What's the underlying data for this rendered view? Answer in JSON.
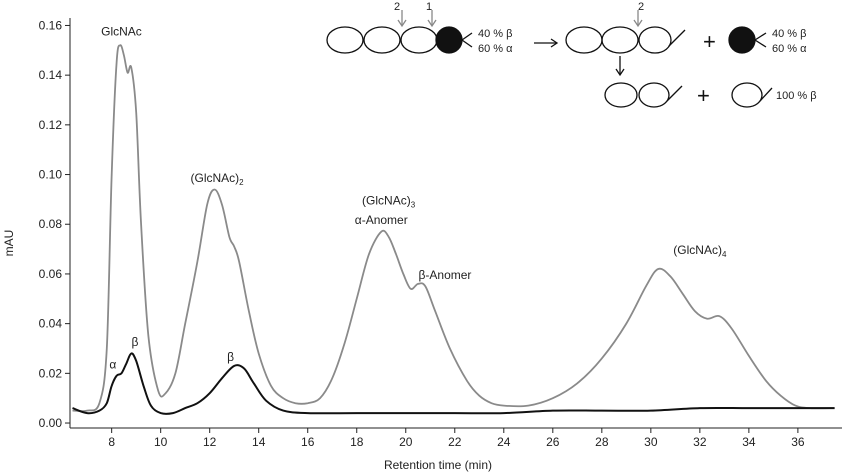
{
  "chart_data": {
    "type": "line",
    "title": "",
    "xlabel": "Retention time (min)",
    "ylabel": "mAU",
    "xlim": [
      6.3,
      37.8
    ],
    "ylim": [
      -0.002,
      0.163
    ],
    "xticks": [
      8,
      10,
      12,
      14,
      16,
      18,
      20,
      22,
      24,
      26,
      28,
      30,
      32,
      34,
      36
    ],
    "yticks": [
      0.0,
      0.02,
      0.04,
      0.06,
      0.08,
      0.1,
      0.12,
      0.14,
      0.16
    ],
    "ytick_labels": [
      "0.00",
      "0.02",
      "0.04",
      "0.06",
      "0.08",
      "0.10",
      "0.12",
      "0.14",
      "0.16"
    ],
    "grid": false,
    "series": [
      {
        "color": "#8a8a8a",
        "points": [
          [
            6.4,
            0.005
          ],
          [
            7.0,
            0.005
          ],
          [
            7.5,
            0.008
          ],
          [
            7.8,
            0.03
          ],
          [
            8.0,
            0.1
          ],
          [
            8.2,
            0.145
          ],
          [
            8.35,
            0.152
          ],
          [
            8.5,
            0.148
          ],
          [
            8.65,
            0.141
          ],
          [
            8.8,
            0.143
          ],
          [
            9.0,
            0.125
          ],
          [
            9.2,
            0.08
          ],
          [
            9.5,
            0.035
          ],
          [
            9.9,
            0.013
          ],
          [
            10.2,
            0.012
          ],
          [
            10.6,
            0.02
          ],
          [
            11.0,
            0.04
          ],
          [
            11.5,
            0.065
          ],
          [
            11.9,
            0.088
          ],
          [
            12.2,
            0.094
          ],
          [
            12.5,
            0.088
          ],
          [
            12.8,
            0.075
          ],
          [
            13.0,
            0.071
          ],
          [
            13.2,
            0.065
          ],
          [
            13.6,
            0.045
          ],
          [
            14.0,
            0.028
          ],
          [
            14.5,
            0.015
          ],
          [
            15.0,
            0.01
          ],
          [
            15.5,
            0.008
          ],
          [
            16.0,
            0.008
          ],
          [
            16.5,
            0.01
          ],
          [
            17.0,
            0.018
          ],
          [
            17.5,
            0.032
          ],
          [
            18.0,
            0.05
          ],
          [
            18.5,
            0.068
          ],
          [
            19.0,
            0.077
          ],
          [
            19.3,
            0.075
          ],
          [
            19.6,
            0.068
          ],
          [
            19.9,
            0.06
          ],
          [
            20.2,
            0.054
          ],
          [
            20.5,
            0.056
          ],
          [
            20.8,
            0.055
          ],
          [
            21.2,
            0.045
          ],
          [
            21.8,
            0.03
          ],
          [
            22.5,
            0.017
          ],
          [
            23.0,
            0.011
          ],
          [
            23.5,
            0.008
          ],
          [
            24.0,
            0.007
          ],
          [
            25.0,
            0.007
          ],
          [
            26.0,
            0.01
          ],
          [
            27.0,
            0.016
          ],
          [
            28.0,
            0.026
          ],
          [
            29.0,
            0.04
          ],
          [
            29.8,
            0.055
          ],
          [
            30.3,
            0.062
          ],
          [
            30.8,
            0.059
          ],
          [
            31.3,
            0.052
          ],
          [
            31.8,
            0.045
          ],
          [
            32.3,
            0.042
          ],
          [
            32.8,
            0.043
          ],
          [
            33.3,
            0.038
          ],
          [
            34.0,
            0.027
          ],
          [
            34.7,
            0.017
          ],
          [
            35.3,
            0.011
          ],
          [
            35.9,
            0.007
          ],
          [
            36.5,
            0.006
          ],
          [
            37.5,
            0.006
          ]
        ]
      },
      {
        "color": "#111111",
        "points": [
          [
            6.4,
            0.006
          ],
          [
            7.0,
            0.004
          ],
          [
            7.5,
            0.005
          ],
          [
            7.8,
            0.008
          ],
          [
            8.0,
            0.015
          ],
          [
            8.2,
            0.019
          ],
          [
            8.4,
            0.02
          ],
          [
            8.6,
            0.024
          ],
          [
            8.8,
            0.028
          ],
          [
            9.0,
            0.025
          ],
          [
            9.3,
            0.015
          ],
          [
            9.6,
            0.007
          ],
          [
            10.0,
            0.004
          ],
          [
            10.5,
            0.004
          ],
          [
            11.0,
            0.006
          ],
          [
            11.5,
            0.008
          ],
          [
            12.0,
            0.012
          ],
          [
            12.5,
            0.018
          ],
          [
            13.0,
            0.023
          ],
          [
            13.4,
            0.022
          ],
          [
            13.8,
            0.016
          ],
          [
            14.3,
            0.009
          ],
          [
            15.0,
            0.005
          ],
          [
            16.0,
            0.004
          ],
          [
            18.0,
            0.004
          ],
          [
            20.0,
            0.004
          ],
          [
            22.0,
            0.004
          ],
          [
            24.0,
            0.004
          ],
          [
            26.0,
            0.005
          ],
          [
            28.0,
            0.005
          ],
          [
            30.0,
            0.005
          ],
          [
            32.0,
            0.006
          ],
          [
            34.0,
            0.006
          ],
          [
            36.0,
            0.006
          ],
          [
            37.5,
            0.006
          ]
        ]
      }
    ],
    "annotations": [
      {
        "text": "GlcNAc",
        "x": 8.4,
        "y": 0.156
      },
      {
        "text": "(GlcNAc)",
        "sub": "2",
        "x": 12.3,
        "y": 0.097
      },
      {
        "text": "(GlcNAc)",
        "sub": "3",
        "x": 19.3,
        "y": 0.088
      },
      {
        "text": "α-Anomer",
        "x": 19.0,
        "y": 0.08
      },
      {
        "text": "β-Anomer",
        "x": 21.6,
        "y": 0.058
      },
      {
        "text": "(GlcNAc)",
        "sub": "4",
        "x": 32.0,
        "y": 0.068
      },
      {
        "text": "α",
        "x": 8.05,
        "y": 0.022
      },
      {
        "text": "β",
        "x": 8.95,
        "y": 0.031
      },
      {
        "text": "β",
        "x": 12.85,
        "y": 0.025
      }
    ],
    "scheme": {
      "arrow_label_1": "1",
      "arrow_label_2": "2",
      "row1_input_pct_beta": "40 % β",
      "row1_input_pct_alpha": "60 % α",
      "row1_arrow_label": "2",
      "row1_product_pct_beta": "40 % β",
      "row1_product_pct_alpha": "60 % α",
      "plus_1": "+",
      "plus_2": "+",
      "row2_pct": "100 % β"
    }
  }
}
